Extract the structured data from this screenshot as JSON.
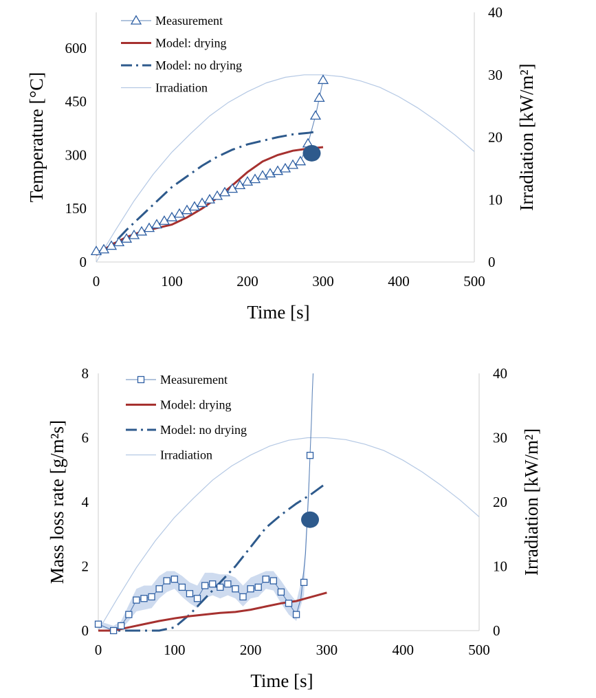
{
  "chart_data": [
    {
      "type": "line",
      "xlabel": "Time [s]",
      "ylabel": "Temperature [°C]",
      "y2label": "Irradiation [kW/m²]",
      "xlim": [
        0,
        500
      ],
      "ylim": [
        0,
        700
      ],
      "y2lim": [
        0,
        40
      ],
      "xticks": [
        "0",
        "100",
        "200",
        "300",
        "400",
        "500"
      ],
      "yticks": [
        "0",
        "150",
        "300",
        "450",
        "600"
      ],
      "y2ticks": [
        "0",
        "10",
        "20",
        "30",
        "40"
      ],
      "legend": [
        "Measurement",
        "Model: drying",
        "Model: no drying",
        "Irradiation"
      ],
      "legend_position": "top-left",
      "grid": false,
      "colors": {
        "measurement": "#2e5fa3",
        "drying": "#a6312f",
        "no_drying": "#2e5a8c",
        "irradiation": "#b4c8e4",
        "marker_fill": "#2e5a8c"
      },
      "series": [
        {
          "name": "Measurement",
          "marker": "triangle",
          "axis": "left",
          "x": [
            0,
            10,
            20,
            30,
            40,
            50,
            60,
            70,
            80,
            90,
            100,
            110,
            120,
            130,
            140,
            150,
            160,
            170,
            180,
            190,
            200,
            210,
            220,
            230,
            240,
            250,
            260,
            270,
            280,
            290,
            295,
            300
          ],
          "y": [
            30,
            35,
            45,
            55,
            65,
            75,
            85,
            95,
            105,
            115,
            125,
            135,
            145,
            155,
            165,
            175,
            185,
            195,
            205,
            215,
            225,
            232,
            242,
            248,
            255,
            262,
            272,
            282,
            332,
            410,
            460,
            510
          ]
        },
        {
          "name": "Model: drying",
          "style": "solid",
          "axis": "left",
          "x": [
            0,
            20,
            40,
            60,
            80,
            100,
            120,
            140,
            160,
            180,
            200,
            220,
            240,
            260,
            280,
            300
          ],
          "y": [
            20,
            48,
            70,
            85,
            95,
            105,
            125,
            150,
            180,
            215,
            252,
            282,
            300,
            312,
            318,
            322
          ]
        },
        {
          "name": "Model: no drying",
          "style": "dashdot",
          "axis": "left",
          "x": [
            0,
            20,
            40,
            60,
            80,
            100,
            120,
            140,
            160,
            180,
            200,
            220,
            240,
            260,
            280,
            290
          ],
          "y": [
            20,
            45,
            90,
            130,
            170,
            210,
            240,
            270,
            295,
            315,
            330,
            340,
            350,
            358,
            362,
            365
          ]
        },
        {
          "name": "Irradiation",
          "style": "thin",
          "axis": "right",
          "x": [
            0,
            25,
            50,
            75,
            100,
            125,
            150,
            175,
            200,
            225,
            250,
            275,
            300,
            325,
            350,
            375,
            400,
            425,
            450,
            475,
            500
          ],
          "y": [
            0,
            5,
            9.8,
            14,
            17.6,
            20.6,
            23.4,
            25.6,
            27.3,
            28.7,
            29.6,
            30.0,
            30.0,
            29.7,
            29.0,
            28.0,
            26.5,
            24.7,
            22.6,
            20.3,
            17.7
          ]
        }
      ],
      "annotations": [
        {
          "type": "filled-circle",
          "x": 285,
          "y": 305
        }
      ]
    },
    {
      "type": "line",
      "xlabel": "Time [s]",
      "ylabel": "Mass loss rate [g/m²s]",
      "y2label": "Irradiation [kW/m²]",
      "xlim": [
        0,
        500
      ],
      "ylim": [
        0,
        8
      ],
      "y2lim": [
        0,
        40
      ],
      "xticks": [
        "0",
        "100",
        "200",
        "300",
        "400",
        "500"
      ],
      "yticks": [
        "0",
        "2",
        "4",
        "6",
        "8"
      ],
      "y2ticks": [
        "0",
        "10",
        "20",
        "30",
        "40"
      ],
      "legend": [
        "Measurement",
        "Model: drying",
        "Model: no drying",
        "Irradiation"
      ],
      "legend_position": "top-left",
      "grid": false,
      "colors": {
        "measurement": "#2e5fa3",
        "band": "#c5d5ec",
        "drying": "#a6312f",
        "no_drying": "#2e5a8c",
        "irradiation": "#b4c8e4",
        "marker_fill": "#2e5a8c"
      },
      "series": [
        {
          "name": "Measurement",
          "marker": "square",
          "axis": "left",
          "x": [
            0,
            20,
            30,
            40,
            50,
            60,
            70,
            80,
            90,
            100,
            110,
            120,
            130,
            140,
            150,
            160,
            170,
            180,
            190,
            200,
            210,
            220,
            230,
            240,
            250,
            260,
            270,
            278
          ],
          "y": [
            0.2,
            0.0,
            0.15,
            0.5,
            0.95,
            1.0,
            1.05,
            1.3,
            1.55,
            1.6,
            1.35,
            1.15,
            1.0,
            1.4,
            1.45,
            1.35,
            1.45,
            1.3,
            1.05,
            1.3,
            1.35,
            1.6,
            1.55,
            1.2,
            0.85,
            0.5,
            1.5,
            5.45
          ],
          "band_upper": [
            0.3,
            0.15,
            0.3,
            0.8,
            1.3,
            1.4,
            1.4,
            1.7,
            1.85,
            1.85,
            1.7,
            1.5,
            1.4,
            1.8,
            1.8,
            1.75,
            1.75,
            1.65,
            1.4,
            1.65,
            1.75,
            1.85,
            1.85,
            1.55,
            1.2,
            0.9,
            1.9,
            5.5
          ],
          "band_lower": [
            0.1,
            0.0,
            0.05,
            0.3,
            0.6,
            0.65,
            0.7,
            1.0,
            1.2,
            1.3,
            1.05,
            0.85,
            0.7,
            1.0,
            1.1,
            1.0,
            1.1,
            1.0,
            0.75,
            1.0,
            1.05,
            1.3,
            1.25,
            0.85,
            0.5,
            0.3,
            1.1,
            5.4
          ],
          "trace_x": [
            0,
            20,
            30,
            40,
            50,
            60,
            70,
            80,
            90,
            100,
            110,
            120,
            130,
            140,
            150,
            160,
            170,
            180,
            190,
            200,
            210,
            220,
            230,
            240,
            250,
            260,
            266,
            272,
            276,
            278,
            280,
            281,
            282
          ],
          "trace_y": [
            0.2,
            0.0,
            0.15,
            0.5,
            0.95,
            1.0,
            1.05,
            1.3,
            1.55,
            1.6,
            1.35,
            1.15,
            1.0,
            1.4,
            1.45,
            1.35,
            1.45,
            1.3,
            1.05,
            1.3,
            1.35,
            1.6,
            1.55,
            1.2,
            0.85,
            0.5,
            1.0,
            2.4,
            4.2,
            5.45,
            6.6,
            7.4,
            8.0
          ]
        },
        {
          "name": "Model: drying",
          "style": "solid",
          "axis": "left",
          "x": [
            0,
            20,
            40,
            60,
            80,
            100,
            120,
            140,
            160,
            180,
            200,
            220,
            240,
            260,
            280,
            300
          ],
          "y": [
            0,
            0.0,
            0.1,
            0.2,
            0.3,
            0.38,
            0.45,
            0.5,
            0.55,
            0.58,
            0.65,
            0.75,
            0.85,
            0.92,
            1.05,
            1.18
          ]
        },
        {
          "name": "Model: no drying",
          "style": "dashdot",
          "axis": "left",
          "x": [
            0,
            20,
            40,
            60,
            80,
            100,
            120,
            140,
            160,
            180,
            200,
            220,
            240,
            260,
            280,
            300
          ],
          "y": [
            0,
            0,
            0,
            0,
            0,
            0.1,
            0.5,
            1.0,
            1.5,
            2.0,
            2.6,
            3.2,
            3.6,
            3.95,
            4.25,
            4.6
          ]
        },
        {
          "name": "Irradiation",
          "style": "thin",
          "axis": "right",
          "x": [
            0,
            25,
            50,
            75,
            100,
            125,
            150,
            175,
            200,
            225,
            250,
            275,
            300,
            325,
            350,
            375,
            400,
            425,
            450,
            475,
            500
          ],
          "y": [
            0,
            5,
            9.8,
            14,
            17.6,
            20.6,
            23.4,
            25.6,
            27.3,
            28.7,
            29.6,
            30.0,
            30.0,
            29.7,
            29.0,
            28.0,
            26.5,
            24.7,
            22.6,
            20.3,
            17.7
          ]
        }
      ],
      "annotations": [
        {
          "type": "filled-circle",
          "x": 278,
          "y": 3.45
        }
      ]
    }
  ]
}
